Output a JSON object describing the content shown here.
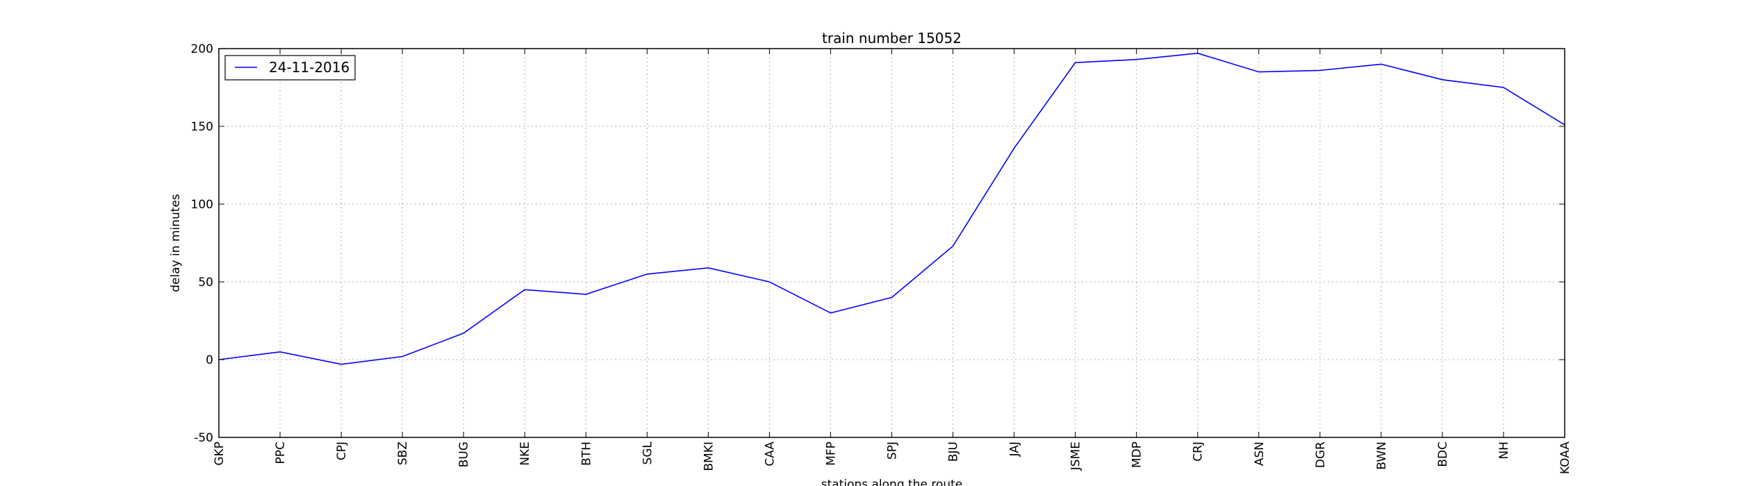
{
  "chart_data": {
    "type": "line",
    "title": "train number 15052",
    "xlabel": "stations along the route",
    "ylabel": "delay in minutes",
    "categories": [
      "GKP",
      "PPC",
      "CPJ",
      "SBZ",
      "BUG",
      "NKE",
      "BTH",
      "SGL",
      "BMKI",
      "CAA",
      "MFP",
      "SPJ",
      "BJU",
      "JAJ",
      "JSME",
      "MDP",
      "CRJ",
      "ASN",
      "DGR",
      "BWN",
      "BDC",
      "NH",
      "KOAA"
    ],
    "series": [
      {
        "name": "24-11-2016",
        "color": "#0000ff",
        "values": [
          0,
          5,
          -3,
          2,
          17,
          45,
          42,
          55,
          59,
          50,
          30,
          40,
          73,
          136,
          191,
          193,
          197,
          185,
          186,
          190,
          180,
          175,
          151
        ]
      }
    ],
    "ylim": [
      -50,
      200
    ],
    "yticks": [
      -50,
      0,
      50,
      100,
      150,
      200
    ],
    "grid": true,
    "legend_position": "top-left"
  }
}
